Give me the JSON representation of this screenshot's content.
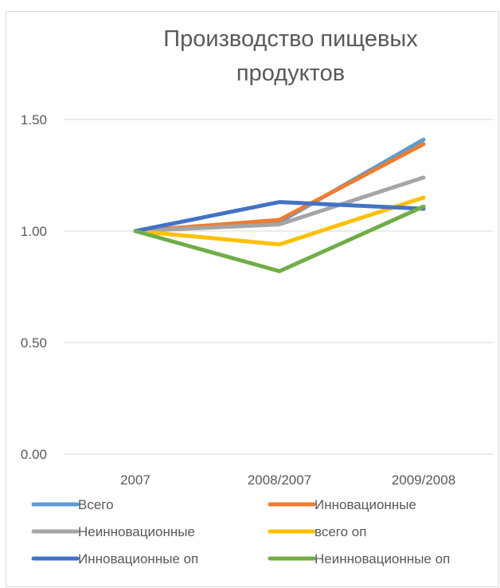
{
  "chart_data": {
    "type": "line",
    "title_lines": [
      "Производство пищевых",
      "продуктов"
    ],
    "title": "Производство пищевых продуктов",
    "xlabel": "",
    "ylabel": "",
    "categories": [
      "2007",
      "2008/2007",
      "2009/2008"
    ],
    "ylim": [
      0,
      1.5
    ],
    "yticks": [
      "0.00",
      "0.50",
      "1.00",
      "1.50"
    ],
    "ytick_values": [
      0,
      0.5,
      1.0,
      1.5
    ],
    "grid": true,
    "legend_position": "bottom",
    "series": [
      {
        "name": "Всего",
        "color": "#5B9BD5",
        "values": [
          1.0,
          1.04,
          1.41
        ]
      },
      {
        "name": "Инновационные",
        "color": "#ED7D31",
        "values": [
          1.0,
          1.05,
          1.39
        ]
      },
      {
        "name": "Неинновационные",
        "color": "#A5A5A5",
        "values": [
          1.0,
          1.03,
          1.24
        ]
      },
      {
        "name": "всего оп",
        "color": "#FFC000",
        "values": [
          1.0,
          0.94,
          1.15
        ]
      },
      {
        "name": "Инновационные оп",
        "color": "#4472C4",
        "values": [
          1.0,
          1.13,
          1.1
        ]
      },
      {
        "name": "Неинновационные оп",
        "color": "#70AD47",
        "values": [
          1.0,
          0.82,
          1.11
        ]
      }
    ]
  }
}
